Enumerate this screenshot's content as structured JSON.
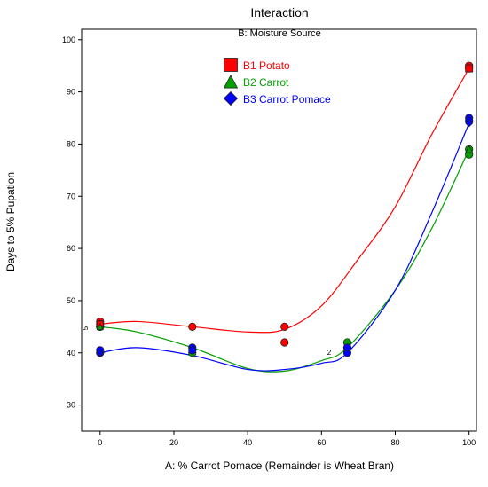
{
  "chart_data": {
    "type": "scatter",
    "title": "Interaction",
    "subtitle": "B: Moisture Source",
    "xlabel": "A: % Carrot Pomace (Remainder is Wheat Bran)",
    "ylabel": "Days to 5% Pupation",
    "xlim": [
      -5,
      102
    ],
    "ylim": [
      25,
      102
    ],
    "xticks": [
      "0",
      "20",
      "40",
      "60",
      "80",
      "100"
    ],
    "yticks": [
      "30",
      "40",
      "50",
      "60",
      "70",
      "80",
      "90",
      "100"
    ],
    "legend_position": "top-center",
    "series": [
      {
        "name": "B1 Potato",
        "color": "#ff0000",
        "marker": "square",
        "points": [
          [
            0,
            46
          ],
          [
            0,
            45.5
          ],
          [
            25,
            45
          ],
          [
            50,
            45
          ],
          [
            50,
            42
          ],
          [
            100,
            95
          ],
          [
            100,
            94.5
          ]
        ],
        "curve": [
          [
            0,
            45.5
          ],
          [
            10,
            46
          ],
          [
            25,
            45
          ],
          [
            40,
            44
          ],
          [
            50,
            44.5
          ],
          [
            60,
            49
          ],
          [
            70,
            58
          ],
          [
            80,
            68
          ],
          [
            90,
            82
          ],
          [
            100,
            94.5
          ]
        ]
      },
      {
        "name": "B2 Carrot",
        "color": "#00a000",
        "marker": "triangle",
        "points": [
          [
            0,
            45
          ],
          [
            0,
            45
          ],
          [
            25,
            40
          ],
          [
            67,
            42
          ],
          [
            67,
            41
          ],
          [
            100,
            79
          ],
          [
            100,
            78
          ]
        ],
        "curve": [
          [
            0,
            45
          ],
          [
            10,
            44
          ],
          [
            25,
            41
          ],
          [
            40,
            37
          ],
          [
            50,
            36.5
          ],
          [
            60,
            38.5
          ],
          [
            67,
            41
          ],
          [
            80,
            52
          ],
          [
            90,
            64
          ],
          [
            100,
            79
          ]
        ]
      },
      {
        "name": "B3 Carrot Pomace",
        "color": "#0000ff",
        "marker": "diamond",
        "points": [
          [
            0,
            40
          ],
          [
            0,
            40.5
          ],
          [
            25,
            41
          ],
          [
            25,
            40.5
          ],
          [
            67,
            40
          ],
          [
            67,
            41
          ],
          [
            100,
            85
          ],
          [
            100,
            84.5
          ]
        ],
        "curve": [
          [
            0,
            40
          ],
          [
            10,
            41
          ],
          [
            25,
            39.5
          ],
          [
            40,
            36.8
          ],
          [
            50,
            36.8
          ],
          [
            60,
            38
          ],
          [
            67,
            40
          ],
          [
            80,
            52
          ],
          [
            90,
            67
          ],
          [
            100,
            84
          ]
        ]
      }
    ],
    "annotations": [
      "5",
      "2"
    ]
  }
}
